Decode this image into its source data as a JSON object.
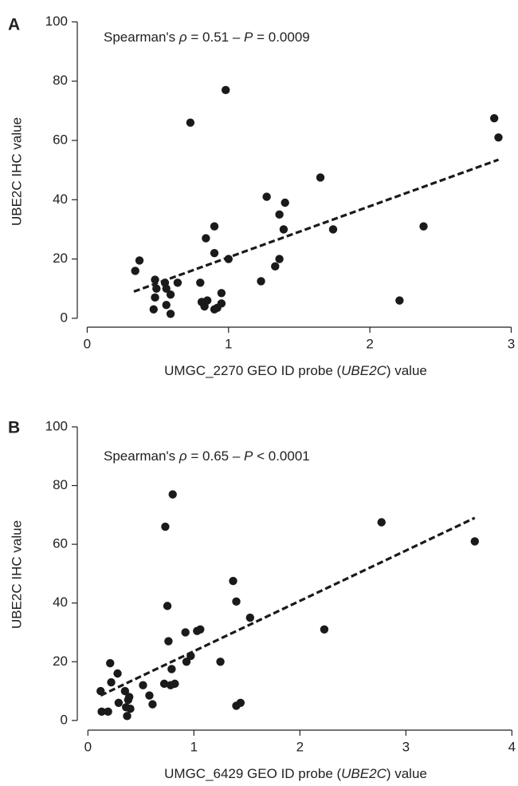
{
  "chart_data": [
    {
      "type": "scatter",
      "panel": "A",
      "annotation": [
        "Spearman's ",
        "ρ",
        " = 0.51 – ",
        "P",
        " = 0.0009"
      ],
      "xlabel": [
        "UMGC_2270 GEO ID probe (",
        "UBE2C",
        ") value"
      ],
      "ylabel": "UBE2C IHC value",
      "x": [
        0.34,
        0.37,
        0.48,
        0.49,
        0.48,
        0.47,
        0.55,
        0.56,
        0.56,
        0.59,
        0.59,
        0.64,
        0.73,
        0.8,
        0.81,
        0.83,
        0.84,
        0.85,
        0.9,
        0.9,
        0.9,
        0.92,
        0.95,
        0.95,
        0.98,
        1.0,
        1.23,
        1.27,
        1.33,
        1.36,
        1.36,
        1.39,
        1.4,
        1.65,
        1.74,
        2.21,
        2.38,
        2.88,
        2.91
      ],
      "values": [
        16,
        19.5,
        13,
        10,
        7,
        3,
        12,
        10,
        4.5,
        8,
        1.5,
        12,
        66,
        12,
        5.5,
        4,
        27,
        6,
        22,
        31,
        3,
        3.5,
        8.5,
        5,
        77,
        20,
        12.5,
        41,
        17.5,
        20,
        35,
        30,
        39,
        47.5,
        30,
        6,
        31,
        67.5,
        61
      ],
      "trend_line": {
        "x": [
          0.33,
          2.91
        ],
        "values": [
          9,
          53.5
        ]
      },
      "color": "#1a1a1a",
      "xlim": [
        -0.07,
        3.02
      ],
      "ylim": [
        -3,
        102
      ],
      "xticks": [
        0,
        1,
        2,
        3
      ],
      "yticks": [
        0,
        20,
        40,
        60,
        80,
        100
      ]
    },
    {
      "type": "scatter",
      "panel": "B",
      "annotation": [
        "Spearman's ",
        "ρ",
        " = 0.65 – ",
        "P",
        " < 0.0001"
      ],
      "xlabel": [
        "UMGC_6429 GEO ID probe (",
        "UBE2C",
        ") value"
      ],
      "ylabel": "UBE2C IHC value",
      "x": [
        0.12,
        0.13,
        0.19,
        0.21,
        0.22,
        0.28,
        0.29,
        0.35,
        0.36,
        0.38,
        0.37,
        0.4,
        0.39,
        0.52,
        0.58,
        0.61,
        0.72,
        0.73,
        0.75,
        0.76,
        0.78,
        0.79,
        0.8,
        0.82,
        0.92,
        0.93,
        0.97,
        1.03,
        1.06,
        1.25,
        1.37,
        1.4,
        1.4,
        1.44,
        1.53,
        2.23,
        2.77,
        3.65
      ],
      "values": [
        10,
        3,
        3,
        19.5,
        13,
        16,
        6,
        10,
        4.5,
        7,
        1.5,
        4,
        8,
        12,
        8.5,
        5.5,
        12.5,
        66,
        39,
        27,
        12,
        17.5,
        77,
        12.5,
        30,
        20,
        22,
        30.5,
        31,
        20,
        47.5,
        5,
        40.5,
        6,
        35,
        31,
        67.5,
        61
      ],
      "trend_line": {
        "x": [
          0.12,
          3.65
        ],
        "values": [
          8.5,
          69
        ]
      },
      "color": "#1a1a1a",
      "xlim": [
        -0.1,
        4.02
      ],
      "ylim": [
        -3.3,
        102.7
      ],
      "xticks": [
        0,
        1,
        2,
        3,
        4
      ],
      "yticks": [
        0,
        20,
        40,
        60,
        80,
        100
      ]
    }
  ]
}
